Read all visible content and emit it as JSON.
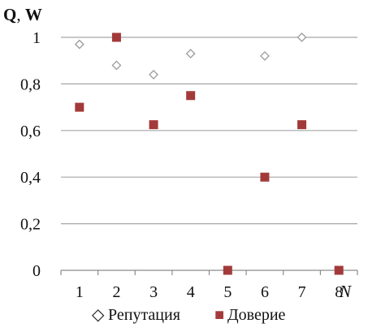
{
  "chart_data": {
    "type": "scatter",
    "title": "",
    "ylabel_part1": "Q",
    "ylabel_sep": ", ",
    "ylabel_part2": "W",
    "xlabel": "N",
    "ylim": [
      0,
      1
    ],
    "xlim": [
      0.5,
      8.5
    ],
    "yticks": [
      "0",
      "0,2",
      "0,4",
      "0,6",
      "0,8",
      "1"
    ],
    "ytick_values": [
      0,
      0.2,
      0.4,
      0.6,
      0.8,
      1
    ],
    "xticks": [
      "1",
      "2",
      "3",
      "4",
      "5",
      "6",
      "7",
      "8"
    ],
    "xtick_values": [
      1,
      2,
      3,
      4,
      5,
      6,
      7,
      8
    ],
    "grid": "horizontal",
    "legend_position": "bottom",
    "series": [
      {
        "name": "Репутация",
        "marker": "diamond-open",
        "color": "#9a9a9a",
        "x": [
          1,
          2,
          3,
          4,
          6,
          7
        ],
        "y": [
          0.97,
          0.88,
          0.84,
          0.93,
          0.92,
          1.0
        ]
      },
      {
        "name": "Доверие",
        "marker": "square-filled",
        "color": "#a33a3a",
        "x": [
          1,
          2,
          3,
          4,
          5,
          6,
          7,
          8
        ],
        "y": [
          0.7,
          1.0,
          0.625,
          0.75,
          0.0,
          0.4,
          0.625,
          0.0
        ]
      }
    ]
  },
  "legend": {
    "diamond_glyph": "◇",
    "square_glyph": "■"
  }
}
